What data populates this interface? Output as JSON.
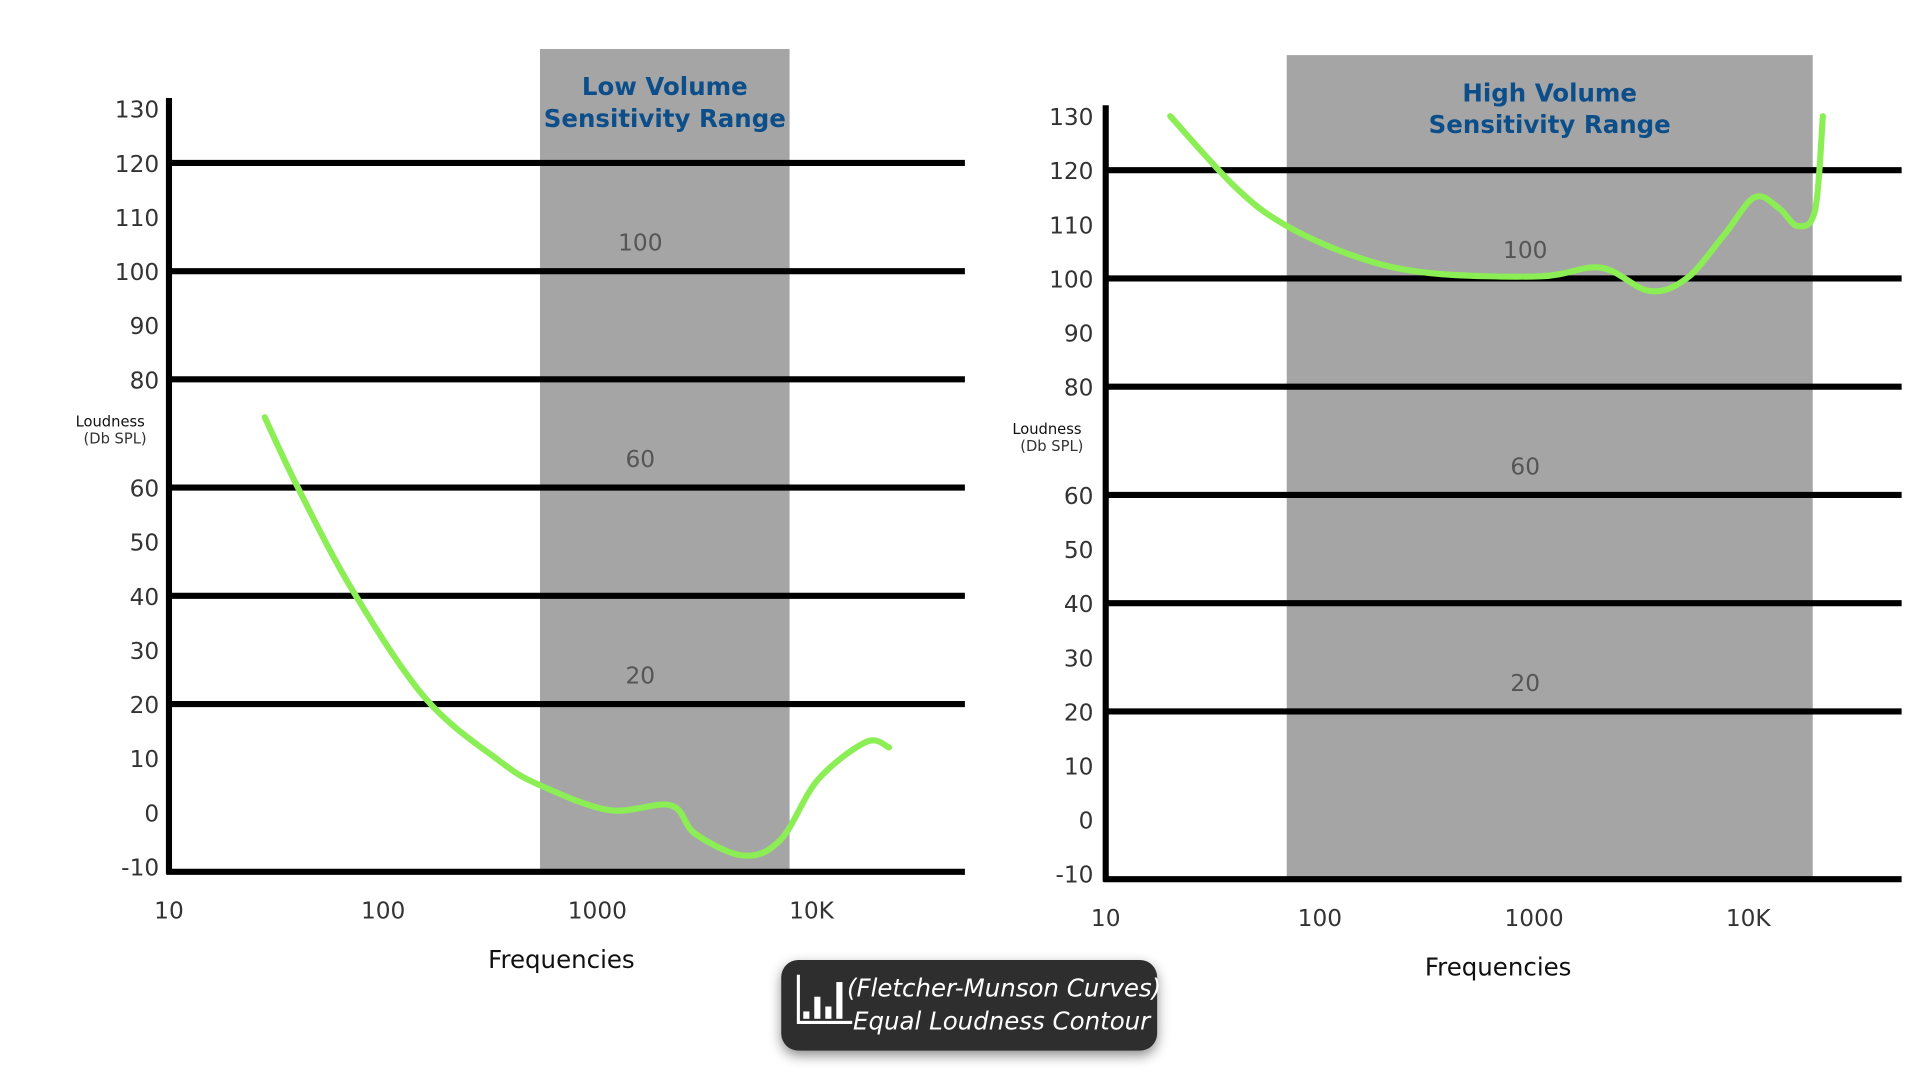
{
  "chart_data": [
    {
      "type": "line",
      "band_title": [
        "Low Volume",
        "Sensitivity Range"
      ],
      "band": [
        540,
        7900
      ],
      "xlabel": "Frequencies",
      "ylabel": [
        "Loudness",
        "(Db SPL)"
      ],
      "xscale": "log",
      "xlim": [
        10,
        50000
      ],
      "ylim": [
        -11,
        132
      ],
      "xticks": [
        10,
        100,
        1000,
        {
          "value": 10000,
          "label": "10K"
        }
      ],
      "yticks": [
        -10,
        0,
        10,
        20,
        30,
        40,
        50,
        60,
        80,
        90,
        100,
        110,
        120,
        130
      ],
      "gridlines": [
        20,
        40,
        60,
        80,
        100,
        120
      ],
      "annotations": [
        {
          "text": "100",
          "y": 100
        },
        {
          "text": "60",
          "y": 60
        },
        {
          "text": "20",
          "y": 20
        }
      ],
      "x": [
        28,
        40,
        72,
        158,
        349,
        540,
        1140,
        2200,
        2870,
        4850,
        7200,
        10700,
        18000,
        23000
      ],
      "color": "#8bee55",
      "values": [
        73,
        60,
        41,
        21,
        9.5,
        5,
        0.4,
        1.3,
        -4,
        -8,
        -5,
        6,
        13,
        12
      ]
    },
    {
      "type": "line",
      "band_title": [
        "High Volume",
        "Sensitivity Range"
      ],
      "band": [
        70,
        20000
      ],
      "xlabel": "Frequencies",
      "ylabel": [
        "Loudness",
        "(Db SPL)"
      ],
      "xscale": "log",
      "xlim": [
        10,
        50000
      ],
      "ylim": [
        -11,
        132
      ],
      "xticks": [
        10,
        100,
        1000,
        {
          "value": 10000,
          "label": "10K"
        }
      ],
      "yticks": [
        -10,
        0,
        10,
        20,
        30,
        40,
        50,
        60,
        80,
        90,
        100,
        110,
        120,
        130
      ],
      "gridlines": [
        20,
        40,
        60,
        80,
        100,
        120
      ],
      "annotations": [
        {
          "text": "100",
          "y": 100
        },
        {
          "text": "60",
          "y": 60
        },
        {
          "text": "20",
          "y": 20
        }
      ],
      "x": [
        20,
        40,
        68,
        148,
        325,
        1070,
        2050,
        3450,
        5150,
        7700,
        10700,
        13900,
        17000,
        20500,
        22300
      ],
      "color": "#8bee55",
      "values": [
        130,
        117,
        110,
        104,
        101,
        100.4,
        102,
        97.7,
        100,
        108,
        115,
        113,
        109.7,
        112.6,
        130
      ]
    }
  ],
  "caption": [
    "(Fletcher-Munson Curves)",
    "Equal Loudness Contour"
  ]
}
